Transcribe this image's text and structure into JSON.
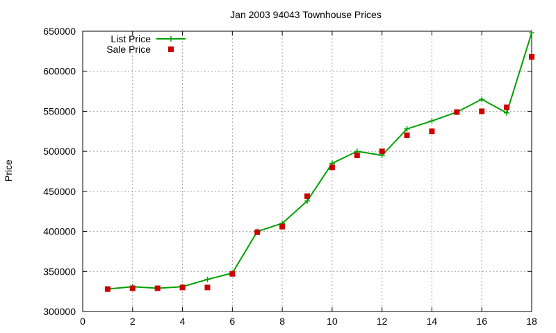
{
  "chart_data": {
    "type": "line",
    "title": "Jan 2003 94043 Townhouse Prices",
    "xlabel": "",
    "ylabel": "Price",
    "xlim": [
      0,
      18
    ],
    "ylim": [
      300000,
      650000
    ],
    "xticks": [
      0,
      2,
      4,
      6,
      8,
      10,
      12,
      14,
      16,
      18
    ],
    "yticks": [
      300000,
      350000,
      400000,
      450000,
      500000,
      550000,
      600000,
      650000
    ],
    "grid": true,
    "legend_position": "top-left",
    "series": [
      {
        "name": "List Price",
        "style": "line-with-plus-markers",
        "color": "#00a000",
        "x": [
          1,
          2,
          3,
          4,
          5,
          6,
          7,
          8,
          9,
          10,
          11,
          12,
          13,
          14,
          15,
          16,
          17,
          18
        ],
        "y": [
          328000,
          331000,
          329000,
          331000,
          340000,
          348000,
          400000,
          410000,
          438000,
          485000,
          500000,
          495000,
          528000,
          538000,
          549000,
          565000,
          548000,
          648000
        ]
      },
      {
        "name": "Sale Price",
        "style": "square-markers",
        "color": "#cc0000",
        "x": [
          1,
          2,
          3,
          4,
          5,
          6,
          7,
          8,
          9,
          10,
          11,
          12,
          13,
          14,
          15,
          16,
          17,
          18
        ],
        "y": [
          328000,
          329000,
          329000,
          330000,
          330000,
          347000,
          399000,
          406000,
          444000,
          480000,
          495000,
          500000,
          520000,
          525000,
          549000,
          550000,
          555000,
          618000
        ]
      }
    ]
  }
}
